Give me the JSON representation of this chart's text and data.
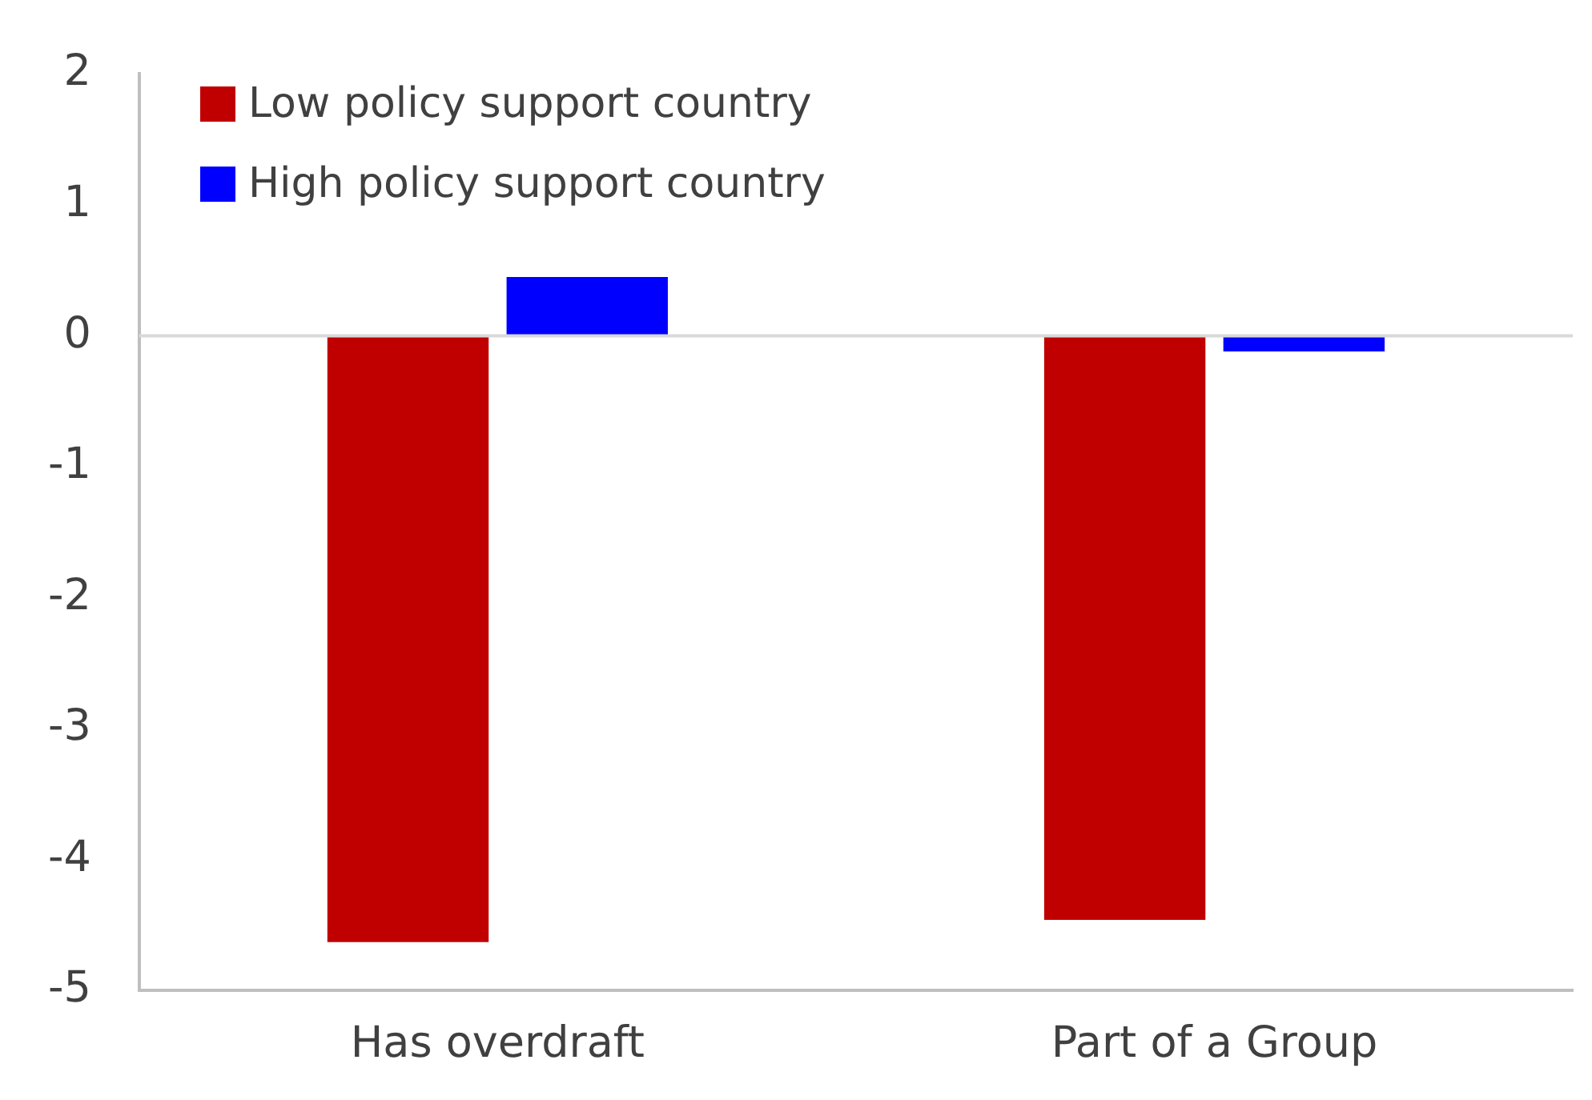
{
  "chart_data": {
    "type": "bar",
    "categories": [
      "Has overdraft",
      "Part of a Group"
    ],
    "series": [
      {
        "name": "Low policy support country",
        "color": "#c00000",
        "values": [
          -4.63,
          -4.46
        ]
      },
      {
        "name": "High policy support country",
        "color": "#0000ff",
        "values": [
          0.45,
          -0.12
        ]
      }
    ],
    "ylim": [
      -5,
      2
    ],
    "yticks": [
      -5,
      -4,
      -3,
      -2,
      -1,
      0,
      1,
      2
    ],
    "legend": "top left",
    "ref_lines": [
      {
        "axis": "y",
        "value": 0,
        "color": "#d9d9d9"
      }
    ]
  }
}
